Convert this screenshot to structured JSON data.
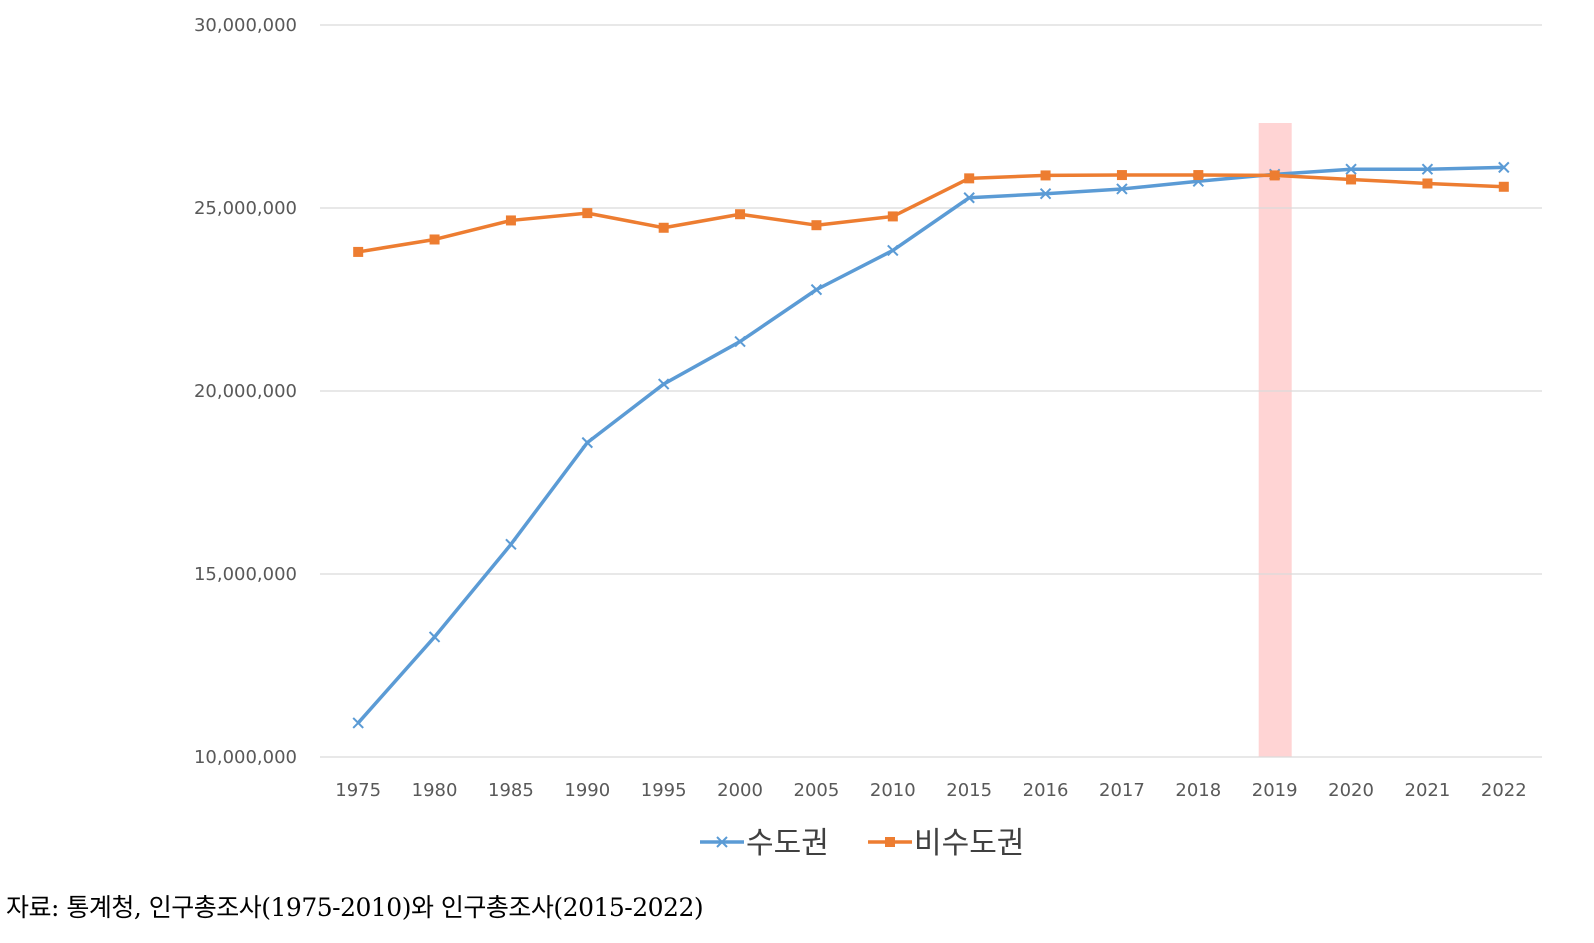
{
  "chart_data": {
    "type": "line",
    "categories": [
      "1975",
      "1980",
      "1985",
      "1990",
      "1995",
      "2000",
      "2005",
      "2010",
      "2015",
      "2016",
      "2017",
      "2018",
      "2019",
      "2020",
      "2021",
      "2022"
    ],
    "series": [
      {
        "name": "수도권",
        "color": "#5B9BD5",
        "marker": "x",
        "values": [
          10930000,
          13280000,
          15810000,
          18590000,
          20190000,
          21350000,
          22770000,
          23840000,
          25280000,
          25390000,
          25520000,
          25730000,
          25920000,
          26060000,
          26060000,
          26110000
        ]
      },
      {
        "name": "비수도권",
        "color": "#ED7D31",
        "marker": "square",
        "values": [
          23800000,
          24140000,
          24660000,
          24860000,
          24460000,
          24830000,
          24530000,
          24770000,
          25810000,
          25890000,
          25900000,
          25900000,
          25890000,
          25780000,
          25670000,
          25580000
        ]
      }
    ],
    "ylim": [
      10000000,
      30000000
    ],
    "yticks": [
      10000000,
      15000000,
      20000000,
      25000000,
      30000000
    ],
    "ytick_labels": [
      "10,000,000",
      "15,000,000",
      "20,000,000",
      "25,000,000",
      "30,000,000"
    ],
    "highlight_category": "2019",
    "highlight_color": "#FFCCCC",
    "grid": "horizontal",
    "legend": "bottom",
    "title": "",
    "xlabel": "",
    "ylabel": ""
  },
  "source": "자료: 통계청, 인구총조사(1975-2010)와 인구총조사(2015-2022)"
}
